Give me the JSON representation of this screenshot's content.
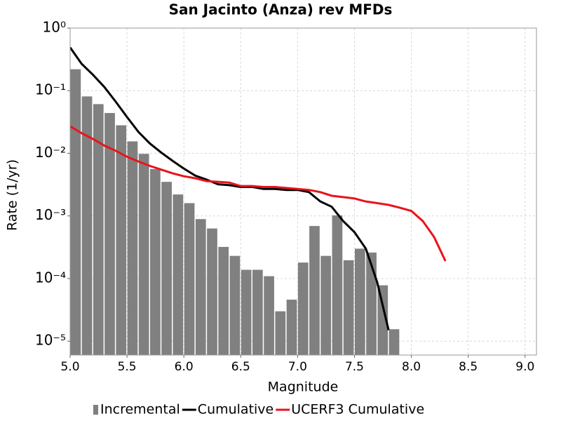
{
  "chart_data": {
    "type": "mixed",
    "title": "San Jacinto (Anza) rev MFDs",
    "x_label": "Magnitude",
    "y_label": "Rate (1/yr)",
    "y_log": true,
    "grid": true,
    "legend": "bottom",
    "xlim": [
      5.0,
      9.1
    ],
    "xticks": [
      {
        "value": 5,
        "label": "5.0"
      },
      5.5,
      {
        "value": 6,
        "label": "6.0"
      },
      6.5,
      {
        "value": 7,
        "label": "7.0"
      },
      7.5,
      {
        "value": 8,
        "label": "8.0"
      },
      8.5,
      {
        "value": 9,
        "label": "9.0"
      }
    ],
    "ylim": [
      6e-06,
      1
    ],
    "yticks": [
      {
        "value": 1,
        "label": "10⁰"
      },
      {
        "value": 0.1,
        "label": "10⁻¹"
      },
      {
        "value": 0.01,
        "label": "10⁻²"
      },
      {
        "value": 0.001,
        "label": "10⁻³"
      },
      {
        "value": 0.0001,
        "label": "10⁻⁴"
      },
      {
        "value": 1e-05,
        "label": "10⁻⁵"
      }
    ],
    "series": [
      {
        "name": "Incremental",
        "type": "bar",
        "color": "#808080",
        "x": [
          5.05,
          5.15,
          5.25,
          5.35,
          5.45,
          5.55,
          5.65,
          5.75,
          5.85,
          5.95,
          6.05,
          6.15,
          6.25,
          6.35,
          6.45,
          6.55,
          6.65,
          6.75,
          6.85,
          6.95,
          7.05,
          7.15,
          7.25,
          7.35,
          7.45,
          7.55,
          7.65,
          7.75,
          7.85
        ],
        "values": [
          0.22,
          0.081,
          0.061,
          0.044,
          0.028,
          0.0155,
          0.0098,
          0.0056,
          0.0035,
          0.0022,
          0.0016,
          0.00089,
          0.00063,
          0.00032,
          0.00023,
          0.000138,
          0.000138,
          0.000109,
          3e-05,
          4.6e-05,
          0.00018,
          0.00069,
          0.00023,
          0.00102,
          0.000196,
          0.0003,
          0.00026,
          7.8e-05,
          1.55e-05
        ]
      },
      {
        "name": "Cumulative",
        "type": "line",
        "color": "#000000",
        "x": [
          5.0,
          5.1,
          5.2,
          5.3,
          5.4,
          5.5,
          5.6,
          5.7,
          5.8,
          5.9,
          6.0,
          6.1,
          6.2,
          6.3,
          6.4,
          6.5,
          6.6,
          6.7,
          6.8,
          6.9,
          7.0,
          7.1,
          7.2,
          7.3,
          7.4,
          7.5,
          7.6,
          7.7,
          7.8
        ],
        "values": [
          0.49,
          0.27,
          0.18,
          0.115,
          0.067,
          0.038,
          0.022,
          0.0144,
          0.0103,
          0.0076,
          0.0057,
          0.0044,
          0.0038,
          0.0032,
          0.0031,
          0.0029,
          0.0029,
          0.0027,
          0.0027,
          0.0026,
          0.0026,
          0.0024,
          0.0017,
          0.0014,
          0.00083,
          0.00055,
          0.0003,
          8.7e-05,
          1.5e-05
        ]
      },
      {
        "name": "UCERF3 Cumulative",
        "type": "line",
        "color": "#e8141b",
        "x": [
          5.0,
          5.1,
          5.2,
          5.3,
          5.4,
          5.5,
          5.6,
          5.7,
          5.8,
          5.9,
          6.0,
          6.1,
          6.2,
          6.3,
          6.4,
          6.5,
          6.6,
          6.7,
          6.8,
          6.9,
          7.0,
          7.1,
          7.2,
          7.3,
          7.4,
          7.5,
          7.6,
          7.7,
          7.8,
          7.9,
          8.0,
          8.1,
          8.2,
          8.3
        ],
        "values": [
          0.027,
          0.021,
          0.017,
          0.0133,
          0.011,
          0.0088,
          0.0074,
          0.0063,
          0.0055,
          0.0048,
          0.0043,
          0.004,
          0.0036,
          0.0035,
          0.0034,
          0.003,
          0.003,
          0.0029,
          0.0029,
          0.0028,
          0.0027,
          0.0026,
          0.0024,
          0.0021,
          0.002,
          0.0019,
          0.0017,
          0.0016,
          0.0015,
          0.00135,
          0.0012,
          0.00083,
          0.00046,
          0.00019
        ]
      }
    ]
  }
}
